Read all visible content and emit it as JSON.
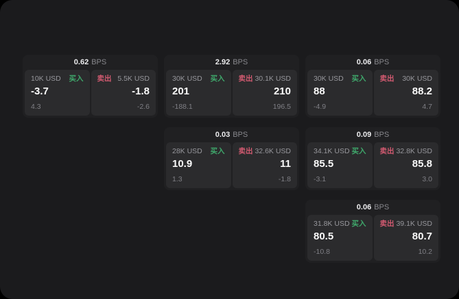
{
  "labels": {
    "bps_unit": "BPS",
    "buy": "买入",
    "sell": "卖出"
  },
  "colors": {
    "buy_accent": "#3fa86b",
    "sell_accent": "#d15a70",
    "panel_background": "#1b1b1d",
    "card_background": "#202022",
    "tile_background": "#2b2b2d"
  },
  "cards": [
    {
      "bps": "0.62",
      "buy": {
        "notional": "10K USD",
        "value": "-3.7",
        "sub": "4.3"
      },
      "sell": {
        "notional": "5.5K USD",
        "value": "-1.8",
        "sub": "-2.6"
      }
    },
    {
      "bps": "2.92",
      "buy": {
        "notional": "30K USD",
        "value": "201",
        "sub": "-188.1"
      },
      "sell": {
        "notional": "30.1K USD",
        "value": "210",
        "sub": "196.5"
      }
    },
    {
      "bps": "0.06",
      "buy": {
        "notional": "30K USD",
        "value": "88",
        "sub": "-4.9"
      },
      "sell": {
        "notional": "30K USD",
        "value": "88.2",
        "sub": "4.7"
      }
    },
    {
      "bps": "0.03",
      "buy": {
        "notional": "28K USD",
        "value": "10.9",
        "sub": "1.3"
      },
      "sell": {
        "notional": "32.6K USD",
        "value": "11",
        "sub": "-1.8"
      }
    },
    {
      "bps": "0.09",
      "buy": {
        "notional": "34.1K USD",
        "value": "85.5",
        "sub": "-3.1"
      },
      "sell": {
        "notional": "32.8K USD",
        "value": "85.8",
        "sub": "3.0"
      }
    },
    {
      "bps": "0.06",
      "buy": {
        "notional": "31.8K USD",
        "value": "80.5",
        "sub": "-10.8"
      },
      "sell": {
        "notional": "39.1K USD",
        "value": "80.7",
        "sub": "10.2"
      }
    }
  ]
}
